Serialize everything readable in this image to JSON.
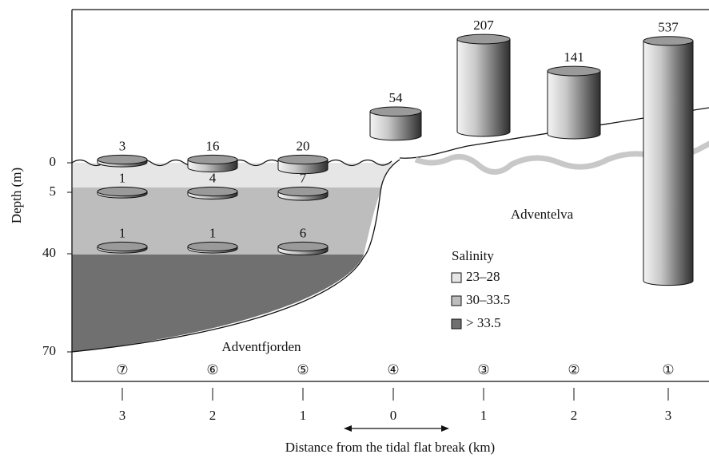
{
  "axes": {
    "y_label": "Depth (m)",
    "y_ticks": [
      "0",
      "5",
      "40",
      "70"
    ],
    "x_label": "Distance from the tidal flat break (km)",
    "x_ticks": [
      "3",
      "2",
      "1",
      "0",
      "1",
      "2",
      "3"
    ]
  },
  "stations": [
    "⑦",
    "⑥",
    "⑤",
    "④",
    "③",
    "②",
    "①"
  ],
  "locations": {
    "fjord": "Adventfjorden",
    "river": "Adventelva"
  },
  "legend": {
    "title": "Salinity",
    "items": [
      {
        "label": "23–28",
        "color": "#e6e6e6"
      },
      {
        "label": "30–33.5",
        "color": "#bdbdbd"
      },
      {
        "label": "> 33.5",
        "color": "#707070"
      }
    ]
  },
  "river_cylinders": [
    54,
    207,
    141,
    537
  ],
  "fjord_disks": [
    [
      3,
      16,
      20
    ],
    [
      1,
      4,
      7
    ],
    [
      1,
      1,
      6
    ]
  ]
}
